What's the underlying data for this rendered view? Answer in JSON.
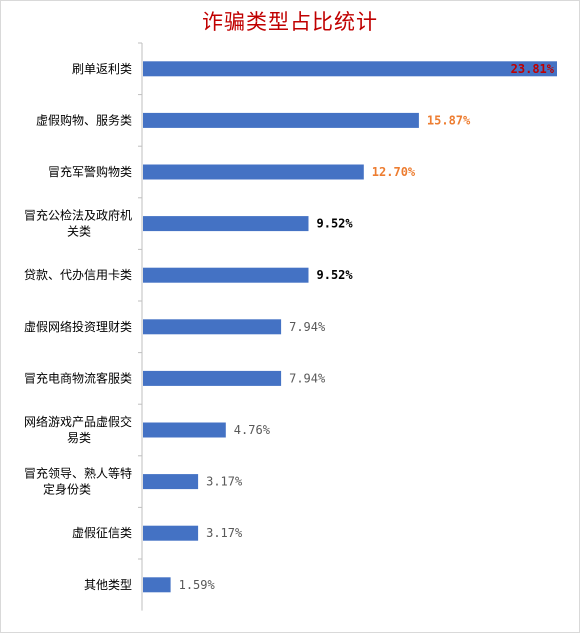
{
  "chart_data": {
    "type": "bar",
    "orientation": "horizontal",
    "title": "诈骗类型占比统计",
    "categories": [
      "刷单返利类",
      "虚假购物、服务类",
      "冒充军警购物类",
      "冒充公检法及政府机关类",
      "贷款、代办信用卡类",
      "虚假网络投资理财类",
      "冒充电商物流客服类",
      "网络游戏产品虚假交易类",
      "冒充领导、熟人等特定身份类",
      "虚假征信类",
      "其他类型"
    ],
    "category_lines": [
      [
        "刷单返利类"
      ],
      [
        "虚假购物、服务类"
      ],
      [
        "冒充军警购物类"
      ],
      [
        "冒充公检法及政府机",
        "关类"
      ],
      [
        "贷款、代办信用卡类"
      ],
      [
        "虚假网络投资理财类"
      ],
      [
        "冒充电商物流客服类"
      ],
      [
        "网络游戏产品虚假交",
        "易类"
      ],
      [
        "冒充领导、熟人等特",
        "定身份类"
      ],
      [
        "虚假征信类"
      ],
      [
        "其他类型"
      ]
    ],
    "values": [
      23.81,
      15.87,
      12.7,
      9.52,
      9.52,
      7.94,
      7.94,
      4.76,
      3.17,
      3.17,
      1.59
    ],
    "data_labels": [
      "23.81%",
      "15.87%",
      "12.70%",
      "9.52%",
      "9.52%",
      "7.94%",
      "7.94%",
      "4.76%",
      "3.17%",
      "3.17%",
      "1.59%"
    ],
    "label_colors": [
      "#c00000",
      "#ed7d31",
      "#ed7d31",
      "#000000",
      "#000000",
      "#595959",
      "#595959",
      "#595959",
      "#595959",
      "#595959",
      "#595959"
    ],
    "label_bold": [
      true,
      true,
      true,
      true,
      true,
      false,
      false,
      false,
      false,
      false,
      false
    ],
    "bar_color": "#4472c4",
    "xlim": [
      0,
      23.81
    ],
    "grid": false,
    "legend": "none"
  }
}
